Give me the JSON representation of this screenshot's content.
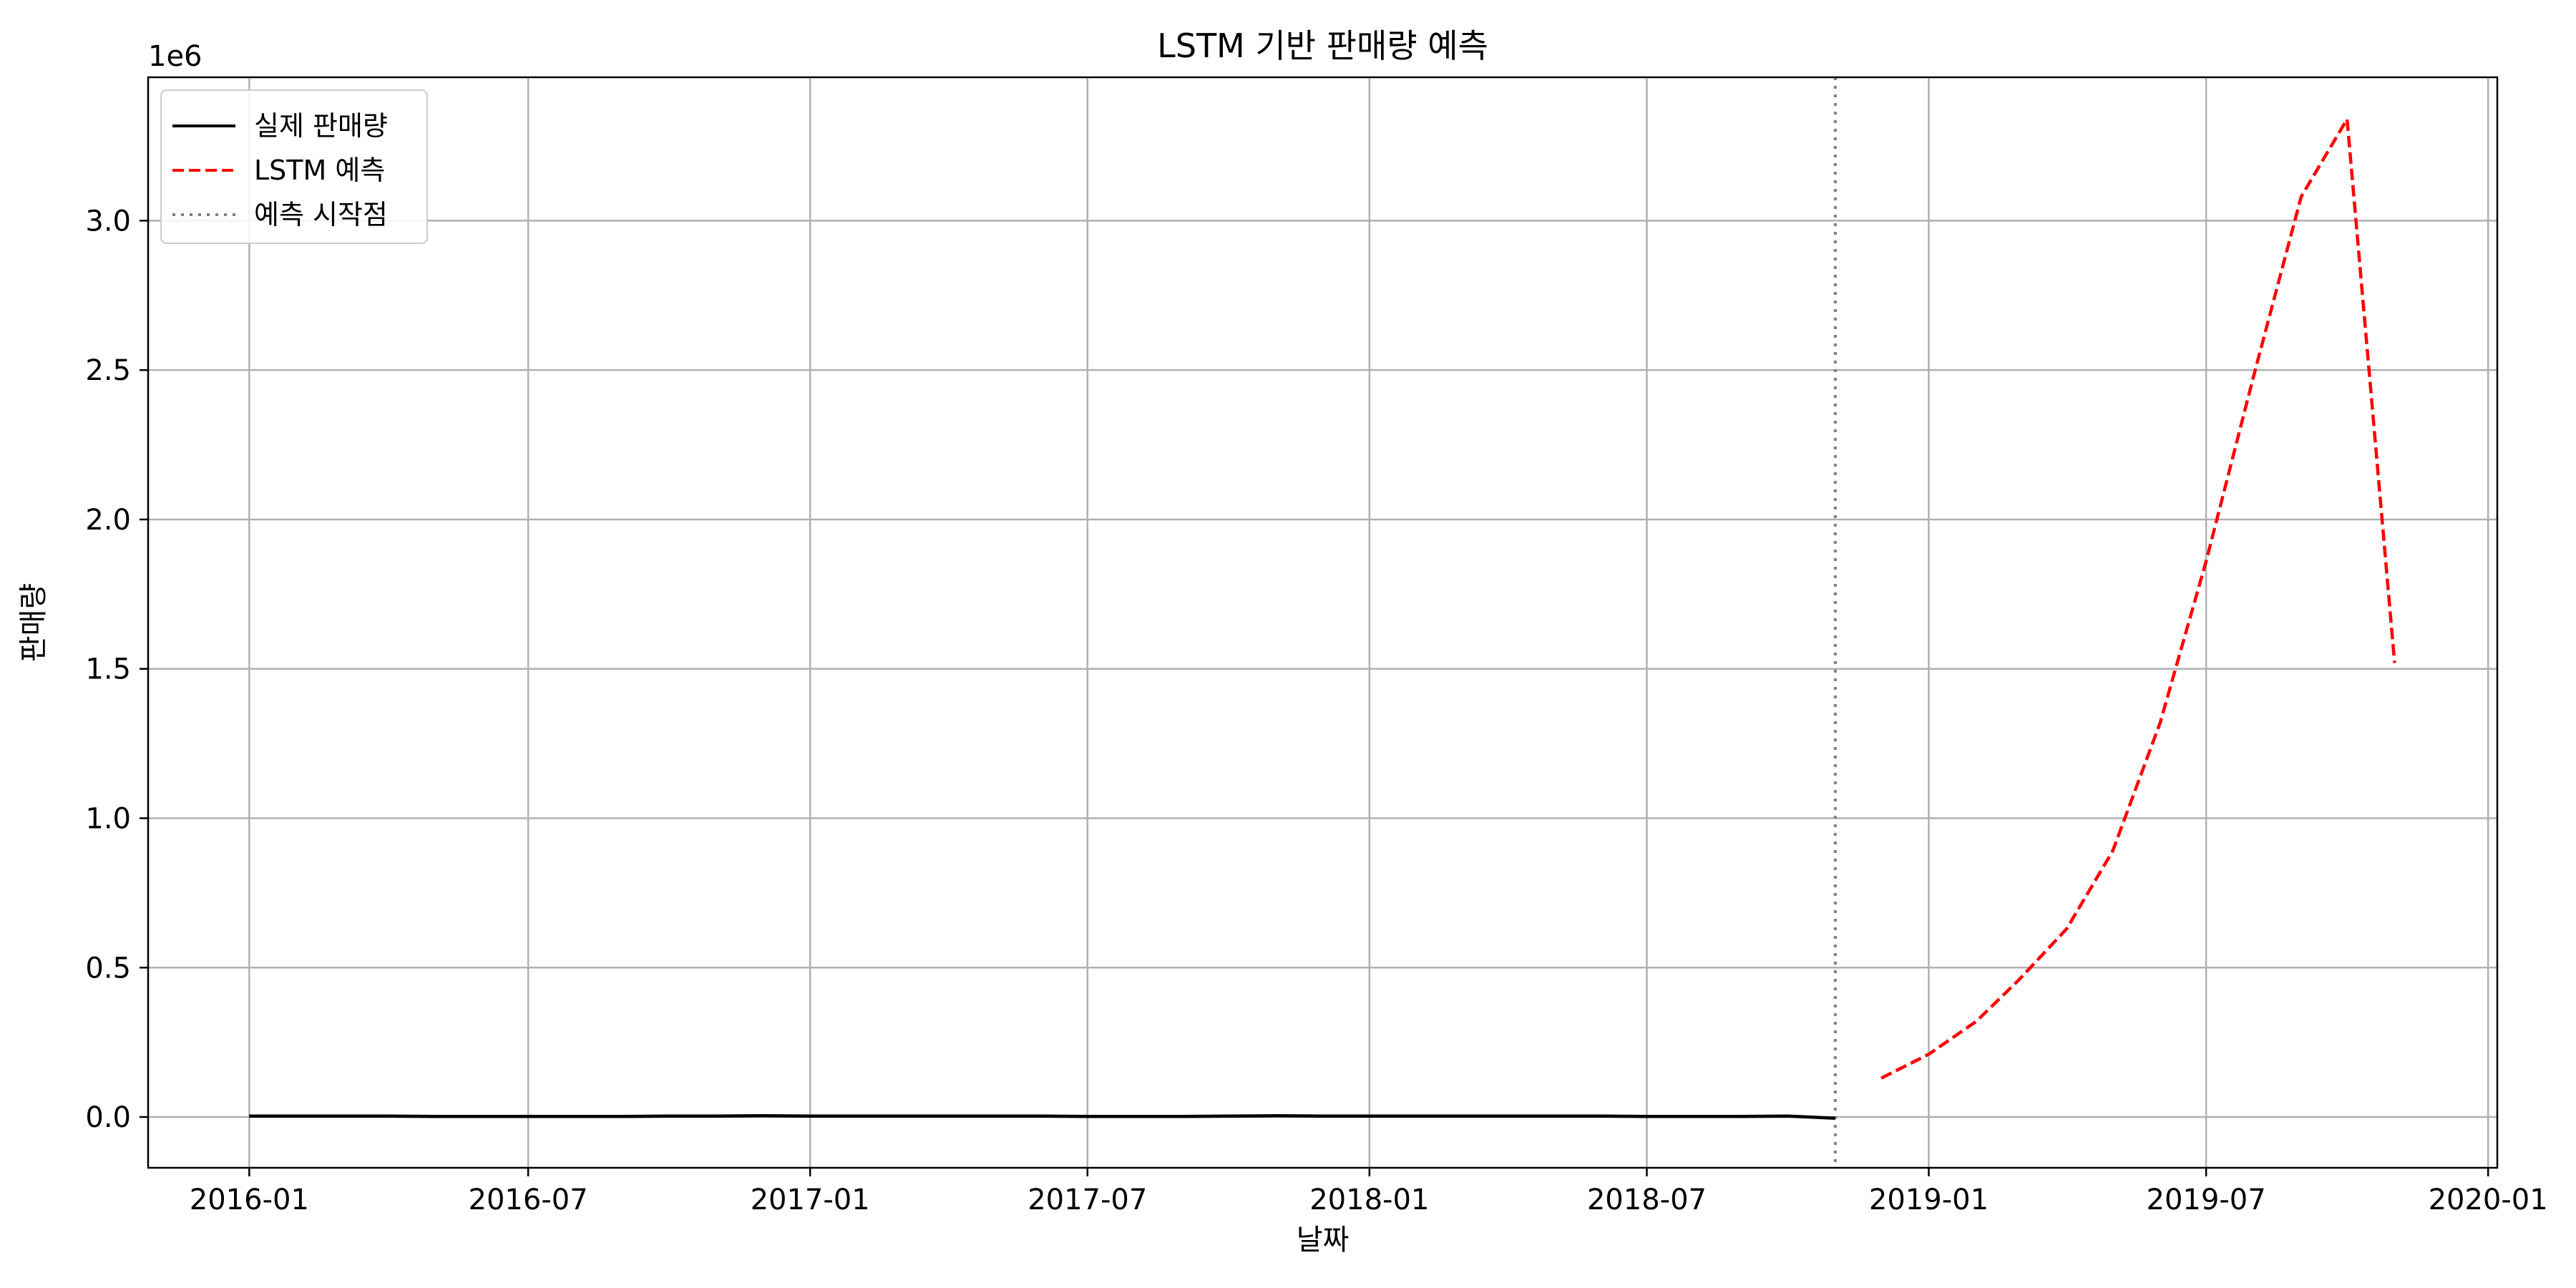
{
  "chart_data": {
    "type": "line",
    "title": "LSTM 기반 판매량 예측",
    "xlabel": "날짜",
    "ylabel": "판매량",
    "y_offset_label": "1e6",
    "xlim": [
      "2015-10-27",
      "2020-01-07"
    ],
    "ylim": [
      -0.17,
      3.48
    ],
    "x_ticks": [
      "2016-01",
      "2016-07",
      "2017-01",
      "2017-07",
      "2018-01",
      "2018-07",
      "2019-01",
      "2019-07",
      "2020-01"
    ],
    "y_ticks": [
      "0.0",
      "0.5",
      "1.0",
      "1.5",
      "2.0",
      "2.5",
      "3.0"
    ],
    "grid": true,
    "legend_position": "upper-left",
    "series": [
      {
        "name": "실제 판매량",
        "color": "#000000",
        "style": "solid",
        "x": [
          "2016-01-01",
          "2016-02-01",
          "2016-03-01",
          "2016-04-01",
          "2016-05-01",
          "2016-06-01",
          "2016-07-01",
          "2016-08-01",
          "2016-09-01",
          "2016-10-01",
          "2016-11-01",
          "2016-12-01",
          "2017-01-01",
          "2017-02-01",
          "2017-03-01",
          "2017-04-01",
          "2017-05-01",
          "2017-06-01",
          "2017-07-01",
          "2017-08-01",
          "2017-09-01",
          "2017-10-01",
          "2017-11-01",
          "2017-12-01",
          "2018-01-01",
          "2018-02-01",
          "2018-03-01",
          "2018-04-01",
          "2018-05-01",
          "2018-06-01",
          "2018-07-01",
          "2018-08-01",
          "2018-09-01",
          "2018-10-01",
          "2018-11-01"
        ],
        "y": [
          0.003,
          0.003,
          0.003,
          0.003,
          0.002,
          0.002,
          0.002,
          0.002,
          0.002,
          0.003,
          0.003,
          0.004,
          0.003,
          0.003,
          0.003,
          0.003,
          0.003,
          0.003,
          0.002,
          0.002,
          0.002,
          0.003,
          0.004,
          0.003,
          0.003,
          0.003,
          0.003,
          0.003,
          0.003,
          0.003,
          0.002,
          0.002,
          0.002,
          0.003,
          -0.004
        ]
      },
      {
        "name": "LSTM 예측",
        "color": "#ff0000",
        "style": "dashed",
        "x": [
          "2018-12-01",
          "2019-01-01",
          "2019-02-01",
          "2019-03-01",
          "2019-04-01",
          "2019-05-01",
          "2019-06-01",
          "2019-07-01",
          "2019-08-01",
          "2019-09-01",
          "2019-10-01",
          "2019-11-01"
        ],
        "y": [
          0.13,
          0.21,
          0.32,
          0.46,
          0.63,
          0.89,
          1.32,
          1.86,
          2.48,
          3.08,
          3.34,
          1.52
        ]
      }
    ],
    "vertical_line": {
      "name": "예측 시작점",
      "x": "2018-11-01",
      "color": "#808080",
      "style": "dotted"
    }
  }
}
